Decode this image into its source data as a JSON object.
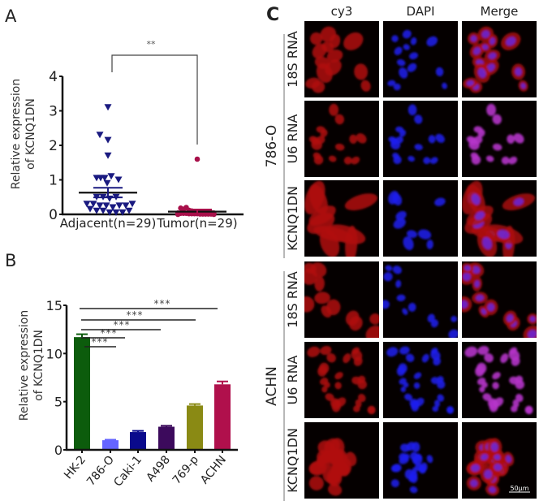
{
  "figure": {
    "panel_letters": {
      "a": "A",
      "b": "B",
      "c": "C"
    }
  },
  "chart_data": [
    {
      "id": "A",
      "type": "scatter",
      "title": "",
      "xlabel": "",
      "ylabel_line1": "Relative expression",
      "ylabel_line2": "of KCNQ1DN",
      "ylim": [
        0,
        4
      ],
      "yticks": [
        "0",
        "1",
        "2",
        "3",
        "4"
      ],
      "categories": [
        "Adjacent(n=29)",
        "Tumor(n=29)"
      ],
      "series": [
        {
          "name": "Adjacent(n=29)",
          "marker": "triangle-down",
          "color": "#1a1a80",
          "values": [
            3.1,
            2.3,
            2.15,
            1.7,
            1.05,
            1.05,
            1.1,
            1.05,
            1.0,
            0.9,
            0.5,
            0.5,
            0.45,
            0.5,
            0.3,
            0.3,
            0.25,
            0.25,
            0.2,
            0.25,
            0.25,
            0.3,
            0.15,
            0.1,
            0.1,
            0.05,
            0.05,
            0.05,
            0.1
          ],
          "mean": 0.63,
          "sem": 0.14
        },
        {
          "name": "Tumor(n=29)",
          "marker": "circle",
          "color": "#a8104a",
          "values": [
            1.6,
            0.18,
            0.15,
            0.2,
            0.12,
            0.1,
            0.08,
            0.08,
            0.07,
            0.06,
            0.05,
            0.05,
            0.05,
            0.04,
            0.04,
            0.03,
            0.03,
            0.03,
            0.02,
            0.02,
            0.02,
            0.02,
            0.01,
            0.01,
            0.01,
            0.01,
            0.01,
            0.0,
            0.0
          ],
          "mean": 0.08,
          "sem": 0.06
        }
      ],
      "annotations": [
        {
          "type": "significance",
          "from": "Adjacent(n=29)",
          "to": "Tumor(n=29)",
          "label": "**"
        }
      ]
    },
    {
      "id": "B",
      "type": "bar",
      "title": "",
      "xlabel": "",
      "ylabel_line1": "Relative expression",
      "ylabel_line2": "of KCNQ1DN",
      "ylim": [
        0,
        15
      ],
      "yticks": [
        "0",
        "5",
        "10",
        "15"
      ],
      "categories": [
        "HK-2",
        "786-O",
        "Caki-1",
        "A498",
        "769-p",
        "ACHN"
      ],
      "values": [
        11.7,
        1.0,
        1.85,
        2.4,
        4.6,
        6.8
      ],
      "errors": [
        0.3,
        0.05,
        0.12,
        0.1,
        0.15,
        0.3
      ],
      "colors": [
        "#0c5c0c",
        "#6464ff",
        "#0a0a8c",
        "#3c0a5c",
        "#8a8a14",
        "#b0104c"
      ],
      "annotations": [
        {
          "type": "significance",
          "from": "HK-2",
          "to": "786-O",
          "label": "***"
        },
        {
          "type": "significance",
          "from": "HK-2",
          "to": "Caki-1",
          "label": "***"
        },
        {
          "type": "significance",
          "from": "HK-2",
          "to": "A498",
          "label": "***"
        },
        {
          "type": "significance",
          "from": "HK-2",
          "to": "769-p",
          "label": "***"
        },
        {
          "type": "significance",
          "from": "HK-2",
          "to": "ACHN",
          "label": "***"
        }
      ]
    }
  ],
  "microscopy": {
    "column_headers": [
      "cy3",
      "DAPI",
      "Merge"
    ],
    "groups": [
      {
        "label": "786-O",
        "rows": [
          "18S RNA",
          "U6 RNA",
          "KCNQ1DN"
        ]
      },
      {
        "label": "ACHN",
        "rows": [
          "18S RNA",
          "U6 RNA",
          "KCNQ1DN"
        ]
      }
    ],
    "channel_colors": {
      "cy3": "#d01818",
      "DAPI": "#1a1aff",
      "Merge": "#b030c8"
    },
    "scale_bar_label": "50μm"
  }
}
